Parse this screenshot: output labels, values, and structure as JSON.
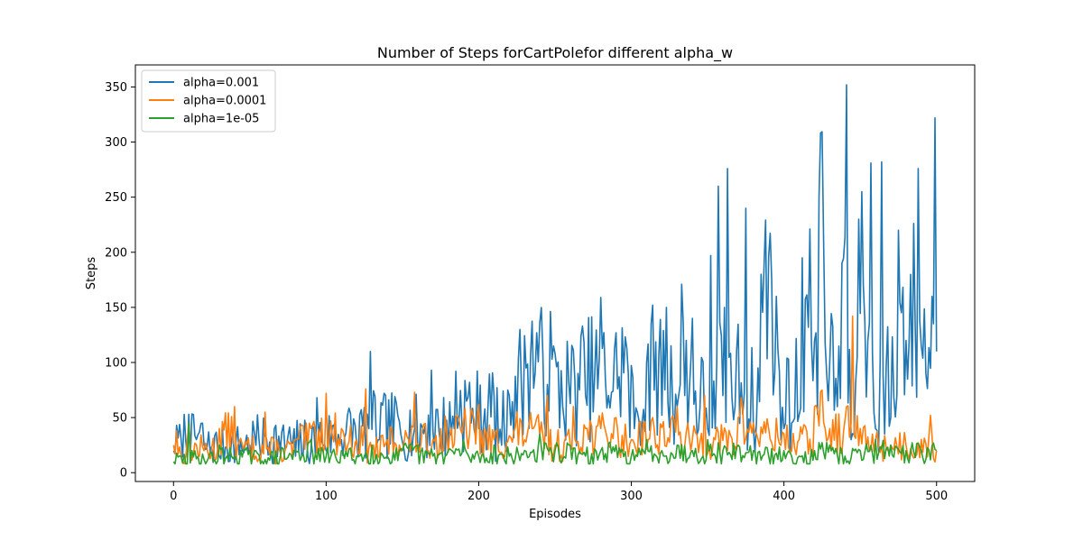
{
  "chart_data": {
    "type": "line",
    "title": "Number of Steps forCartPolefor different alpha_w",
    "xlabel": "Episodes",
    "ylabel": "Steps",
    "xlim": [
      -25,
      525
    ],
    "ylim": [
      -8,
      370
    ],
    "xticks": [
      0,
      100,
      200,
      300,
      400,
      500
    ],
    "yticks": [
      0,
      50,
      100,
      150,
      200,
      250,
      300,
      350
    ],
    "legend_position": "upper-left",
    "grid": false,
    "series": [
      {
        "name": "alpha=0.001",
        "color": "#1f77b4",
        "keypoints": [
          [
            0,
            20
          ],
          [
            5,
            30
          ],
          [
            10,
            53
          ],
          [
            20,
            25
          ],
          [
            30,
            15
          ],
          [
            50,
            25
          ],
          [
            70,
            20
          ],
          [
            80,
            15
          ],
          [
            94,
            68
          ],
          [
            100,
            20
          ],
          [
            110,
            30
          ],
          [
            120,
            25
          ],
          [
            128,
            40
          ],
          [
            129,
            110
          ],
          [
            135,
            30
          ],
          [
            150,
            28
          ],
          [
            160,
            25
          ],
          [
            169,
            93
          ],
          [
            175,
            25
          ],
          [
            185,
            92
          ],
          [
            195,
            45
          ],
          [
            200,
            40
          ],
          [
            210,
            70
          ],
          [
            215,
            25
          ],
          [
            220,
            70
          ],
          [
            231,
            95
          ],
          [
            238,
            127
          ],
          [
            245,
            80
          ],
          [
            249,
            115
          ],
          [
            255,
            60
          ],
          [
            265,
            90
          ],
          [
            270,
            70
          ],
          [
            280,
            159
          ],
          [
            285,
            70
          ],
          [
            292,
            87
          ],
          [
            297,
            113
          ],
          [
            302,
            40
          ],
          [
            310,
            100
          ],
          [
            315,
            75
          ],
          [
            323,
            150
          ],
          [
            330,
            60
          ],
          [
            333,
            171
          ],
          [
            338,
            75
          ],
          [
            340,
            140
          ],
          [
            350,
            40
          ],
          [
            352,
            197
          ],
          [
            355,
            40
          ],
          [
            357,
            260
          ],
          [
            360,
            70
          ],
          [
            363,
            276
          ],
          [
            368,
            60
          ],
          [
            375,
            240
          ],
          [
            380,
            40
          ],
          [
            385,
            180
          ],
          [
            395,
            160
          ],
          [
            400,
            40
          ],
          [
            405,
            45
          ],
          [
            412,
            195
          ],
          [
            420,
            120
          ],
          [
            423,
            250
          ],
          [
            426,
            210
          ],
          [
            430,
            100
          ],
          [
            435,
            60
          ],
          [
            438,
            190
          ],
          [
            441,
            352
          ],
          [
            444,
            30
          ],
          [
            449,
            230
          ],
          [
            451,
            255
          ],
          [
            455,
            120
          ],
          [
            457,
            281
          ],
          [
            460,
            40
          ],
          [
            464,
            282
          ],
          [
            470,
            50
          ],
          [
            475,
            220
          ],
          [
            480,
            120
          ],
          [
            488,
            276
          ],
          [
            490,
            115
          ],
          [
            493,
            90
          ],
          [
            497,
            160
          ],
          [
            499,
            322
          ],
          [
            500,
            110
          ]
        ],
        "values": null
      },
      {
        "name": "alpha=0.0001",
        "color": "#ff7f0e",
        "keypoints": [
          [
            0,
            25
          ],
          [
            2,
            38
          ],
          [
            5,
            15
          ],
          [
            10,
            45
          ],
          [
            20,
            20
          ],
          [
            30,
            40
          ],
          [
            40,
            60
          ],
          [
            50,
            20
          ],
          [
            60,
            55
          ],
          [
            70,
            18
          ],
          [
            80,
            30
          ],
          [
            90,
            40
          ],
          [
            100,
            72
          ],
          [
            110,
            40
          ],
          [
            120,
            30
          ],
          [
            126,
            76
          ],
          [
            130,
            20
          ],
          [
            140,
            30
          ],
          [
            158,
            73
          ],
          [
            170,
            30
          ],
          [
            175,
            40
          ],
          [
            190,
            45
          ],
          [
            200,
            62
          ],
          [
            210,
            30
          ],
          [
            225,
            55
          ],
          [
            235,
            40
          ],
          [
            245,
            70
          ],
          [
            250,
            25
          ],
          [
            262,
            60
          ],
          [
            270,
            40
          ],
          [
            280,
            40
          ],
          [
            290,
            50
          ],
          [
            300,
            30
          ],
          [
            305,
            45
          ],
          [
            315,
            40
          ],
          [
            330,
            60
          ],
          [
            340,
            30
          ],
          [
            348,
            70
          ],
          [
            355,
            30
          ],
          [
            370,
            50
          ],
          [
            372,
            68
          ],
          [
            380,
            45
          ],
          [
            390,
            40
          ],
          [
            400,
            35
          ],
          [
            410,
            30
          ],
          [
            420,
            60
          ],
          [
            425,
            75
          ],
          [
            430,
            40
          ],
          [
            440,
            48
          ],
          [
            445,
            142
          ],
          [
            450,
            40
          ],
          [
            460,
            30
          ],
          [
            470,
            25
          ],
          [
            480,
            25
          ],
          [
            490,
            30
          ],
          [
            496,
            52
          ],
          [
            500,
            20
          ]
        ],
        "values": null
      },
      {
        "name": "alpha=1e-05",
        "color": "#2ca02c",
        "keypoints": [
          [
            0,
            10
          ],
          [
            10,
            45
          ],
          [
            20,
            12
          ],
          [
            30,
            25
          ],
          [
            40,
            15
          ],
          [
            50,
            20
          ],
          [
            60,
            12
          ],
          [
            70,
            15
          ],
          [
            80,
            20
          ],
          [
            90,
            30
          ],
          [
            100,
            15
          ],
          [
            110,
            20
          ],
          [
            120,
            15
          ],
          [
            130,
            25
          ],
          [
            140,
            15
          ],
          [
            150,
            20
          ],
          [
            160,
            25
          ],
          [
            170,
            15
          ],
          [
            180,
            20
          ],
          [
            190,
            30
          ],
          [
            200,
            15
          ],
          [
            210,
            25
          ],
          [
            220,
            15
          ],
          [
            230,
            20
          ],
          [
            240,
            35
          ],
          [
            250,
            20
          ],
          [
            260,
            25
          ],
          [
            270,
            15
          ],
          [
            280,
            20
          ],
          [
            290,
            25
          ],
          [
            300,
            15
          ],
          [
            310,
            30
          ],
          [
            320,
            20
          ],
          [
            330,
            25
          ],
          [
            340,
            20
          ],
          [
            350,
            30
          ],
          [
            360,
            20
          ],
          [
            370,
            25
          ],
          [
            380,
            20
          ],
          [
            390,
            15
          ],
          [
            400,
            20
          ],
          [
            410,
            15
          ],
          [
            420,
            20
          ],
          [
            430,
            25
          ],
          [
            440,
            15
          ],
          [
            450,
            20
          ],
          [
            460,
            30
          ],
          [
            470,
            25
          ],
          [
            480,
            20
          ],
          [
            490,
            20
          ],
          [
            500,
            20
          ]
        ],
        "values": null
      }
    ]
  }
}
